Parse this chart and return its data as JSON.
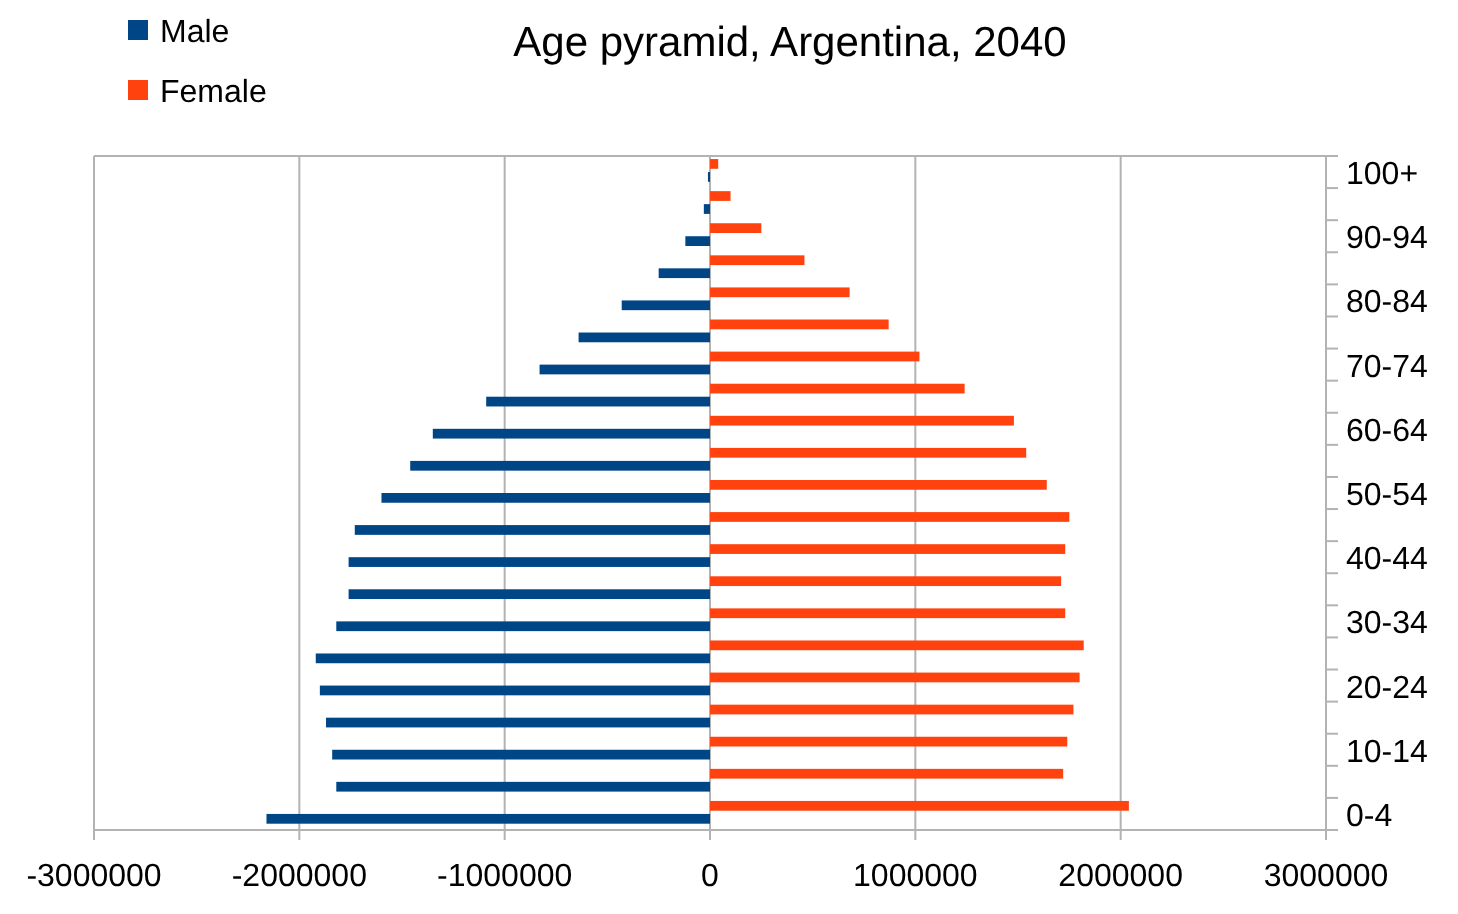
{
  "chart_data": {
    "type": "bar",
    "orientation": "horizontal",
    "title": "Age pyramid, Argentina, 2040",
    "categories": [
      "100+",
      null,
      "90-94",
      null,
      "80-84",
      null,
      "70-74",
      null,
      "60-64",
      null,
      "50-54",
      null,
      "40-44",
      null,
      "30-34",
      null,
      "20-24",
      null,
      "10-14",
      null,
      "0-4"
    ],
    "series": [
      {
        "name": "Male",
        "color": "#004586",
        "values": [
          -10000,
          -30000,
          -120000,
          -250000,
          -430000,
          -640000,
          -830000,
          -1090000,
          -1350000,
          -1460000,
          -1600000,
          -1730000,
          -1760000,
          -1760000,
          -1820000,
          -1920000,
          -1900000,
          -1870000,
          -1840000,
          -1820000,
          -2160000
        ]
      },
      {
        "name": "Female",
        "color": "#ff420e",
        "values": [
          40000,
          100000,
          250000,
          460000,
          680000,
          870000,
          1020000,
          1240000,
          1480000,
          1540000,
          1640000,
          1750000,
          1730000,
          1710000,
          1730000,
          1820000,
          1800000,
          1770000,
          1740000,
          1720000,
          2040000
        ]
      }
    ],
    "xlim": [
      -3000000,
      3000000
    ],
    "xticks": [
      -3000000,
      -2000000,
      -1000000,
      0,
      1000000,
      2000000,
      3000000
    ],
    "grid": "x",
    "legend": "top left"
  }
}
